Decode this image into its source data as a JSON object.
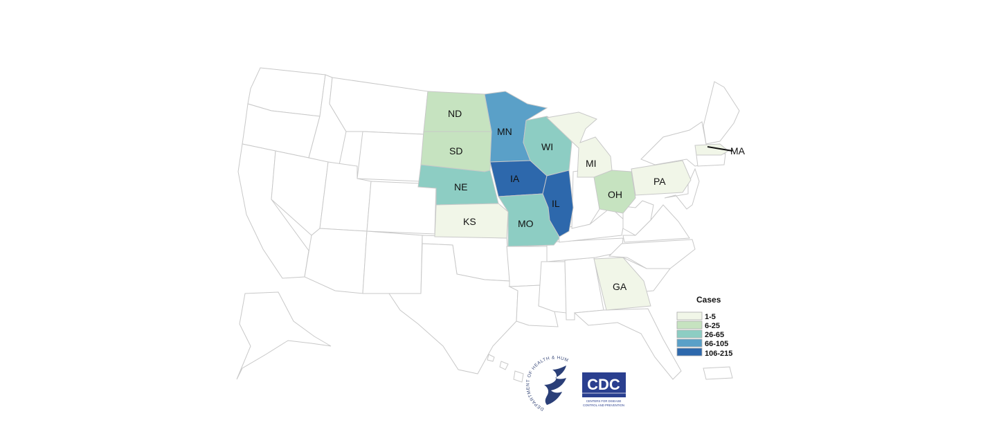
{
  "map": {
    "colors": {
      "none": "#ffffff",
      "1-5": "#f1f6e8",
      "6-25": "#c6e3c0",
      "26-65": "#8dcdc3",
      "66-105": "#5aa0c8",
      "106-215": "#2d68ac"
    },
    "states": [
      {
        "abbr": "ND",
        "range": "6-25"
      },
      {
        "abbr": "SD",
        "range": "6-25"
      },
      {
        "abbr": "NE",
        "range": "26-65"
      },
      {
        "abbr": "KS",
        "range": "1-5"
      },
      {
        "abbr": "MN",
        "range": "66-105"
      },
      {
        "abbr": "IA",
        "range": "106-215"
      },
      {
        "abbr": "MO",
        "range": "26-65"
      },
      {
        "abbr": "WI",
        "range": "26-65"
      },
      {
        "abbr": "IL",
        "range": "106-215"
      },
      {
        "abbr": "MI",
        "range": "1-5"
      },
      {
        "abbr": "OH",
        "range": "6-25"
      },
      {
        "abbr": "PA",
        "range": "1-5"
      },
      {
        "abbr": "MA",
        "range": "1-5"
      },
      {
        "abbr": "GA",
        "range": "1-5"
      }
    ]
  },
  "legend": {
    "title": "Cases",
    "items": [
      {
        "label": "1-5",
        "color": "#f1f6e8"
      },
      {
        "label": "6-25",
        "color": "#c6e3c0"
      },
      {
        "label": "26-65",
        "color": "#8dcdc3"
      },
      {
        "label": "66-105",
        "color": "#5aa0c8"
      },
      {
        "label": "106-215",
        "color": "#2d68ac"
      }
    ]
  },
  "logos": {
    "hhs_seal_text": "DEPARTMENT OF HEALTH & HUMAN SERVICES USA",
    "cdc_wordmark": "CDC",
    "cdc_tagline_1": "CENTERS FOR DISEASE",
    "cdc_tagline_2": "CONTROL AND PREVENTION"
  }
}
